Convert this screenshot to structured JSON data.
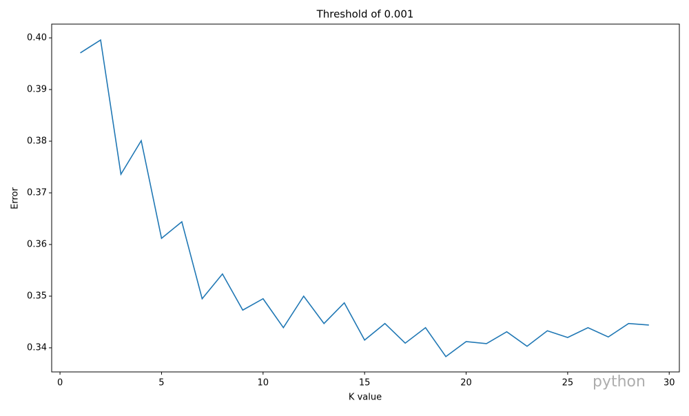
{
  "chart_data": {
    "type": "line",
    "title": "Threshold of 0.001",
    "x_label": "K value",
    "y_label": "Error",
    "x": [
      1,
      2,
      3,
      4,
      5,
      6,
      7,
      8,
      9,
      10,
      11,
      12,
      13,
      14,
      15,
      16,
      17,
      18,
      19,
      20,
      21,
      22,
      23,
      24,
      25,
      26,
      27,
      28,
      29
    ],
    "series": [
      {
        "name": "Error",
        "color": "#1f77b4",
        "values": [
          0.3971,
          0.3996,
          0.3736,
          0.3801,
          0.3612,
          0.3644,
          0.3495,
          0.3543,
          0.3473,
          0.3495,
          0.3439,
          0.35,
          0.3447,
          0.3487,
          0.3415,
          0.3447,
          0.3409,
          0.3439,
          0.3383,
          0.3412,
          0.3408,
          0.3431,
          0.3403,
          0.3433,
          0.342,
          0.3439,
          0.3421,
          0.3447,
          0.3444
        ]
      }
    ],
    "xlim": [
      -0.41,
      30.5
    ],
    "xticks": [
      0,
      5,
      10,
      15,
      20,
      25,
      30
    ],
    "ylim": [
      0.33533,
      0.40267
    ],
    "yticks": [
      0.34,
      0.35,
      0.36,
      0.37,
      0.38,
      0.39,
      {
        "value": 0.4,
        "label": "0.40"
      }
    ]
  },
  "watermark": "python"
}
